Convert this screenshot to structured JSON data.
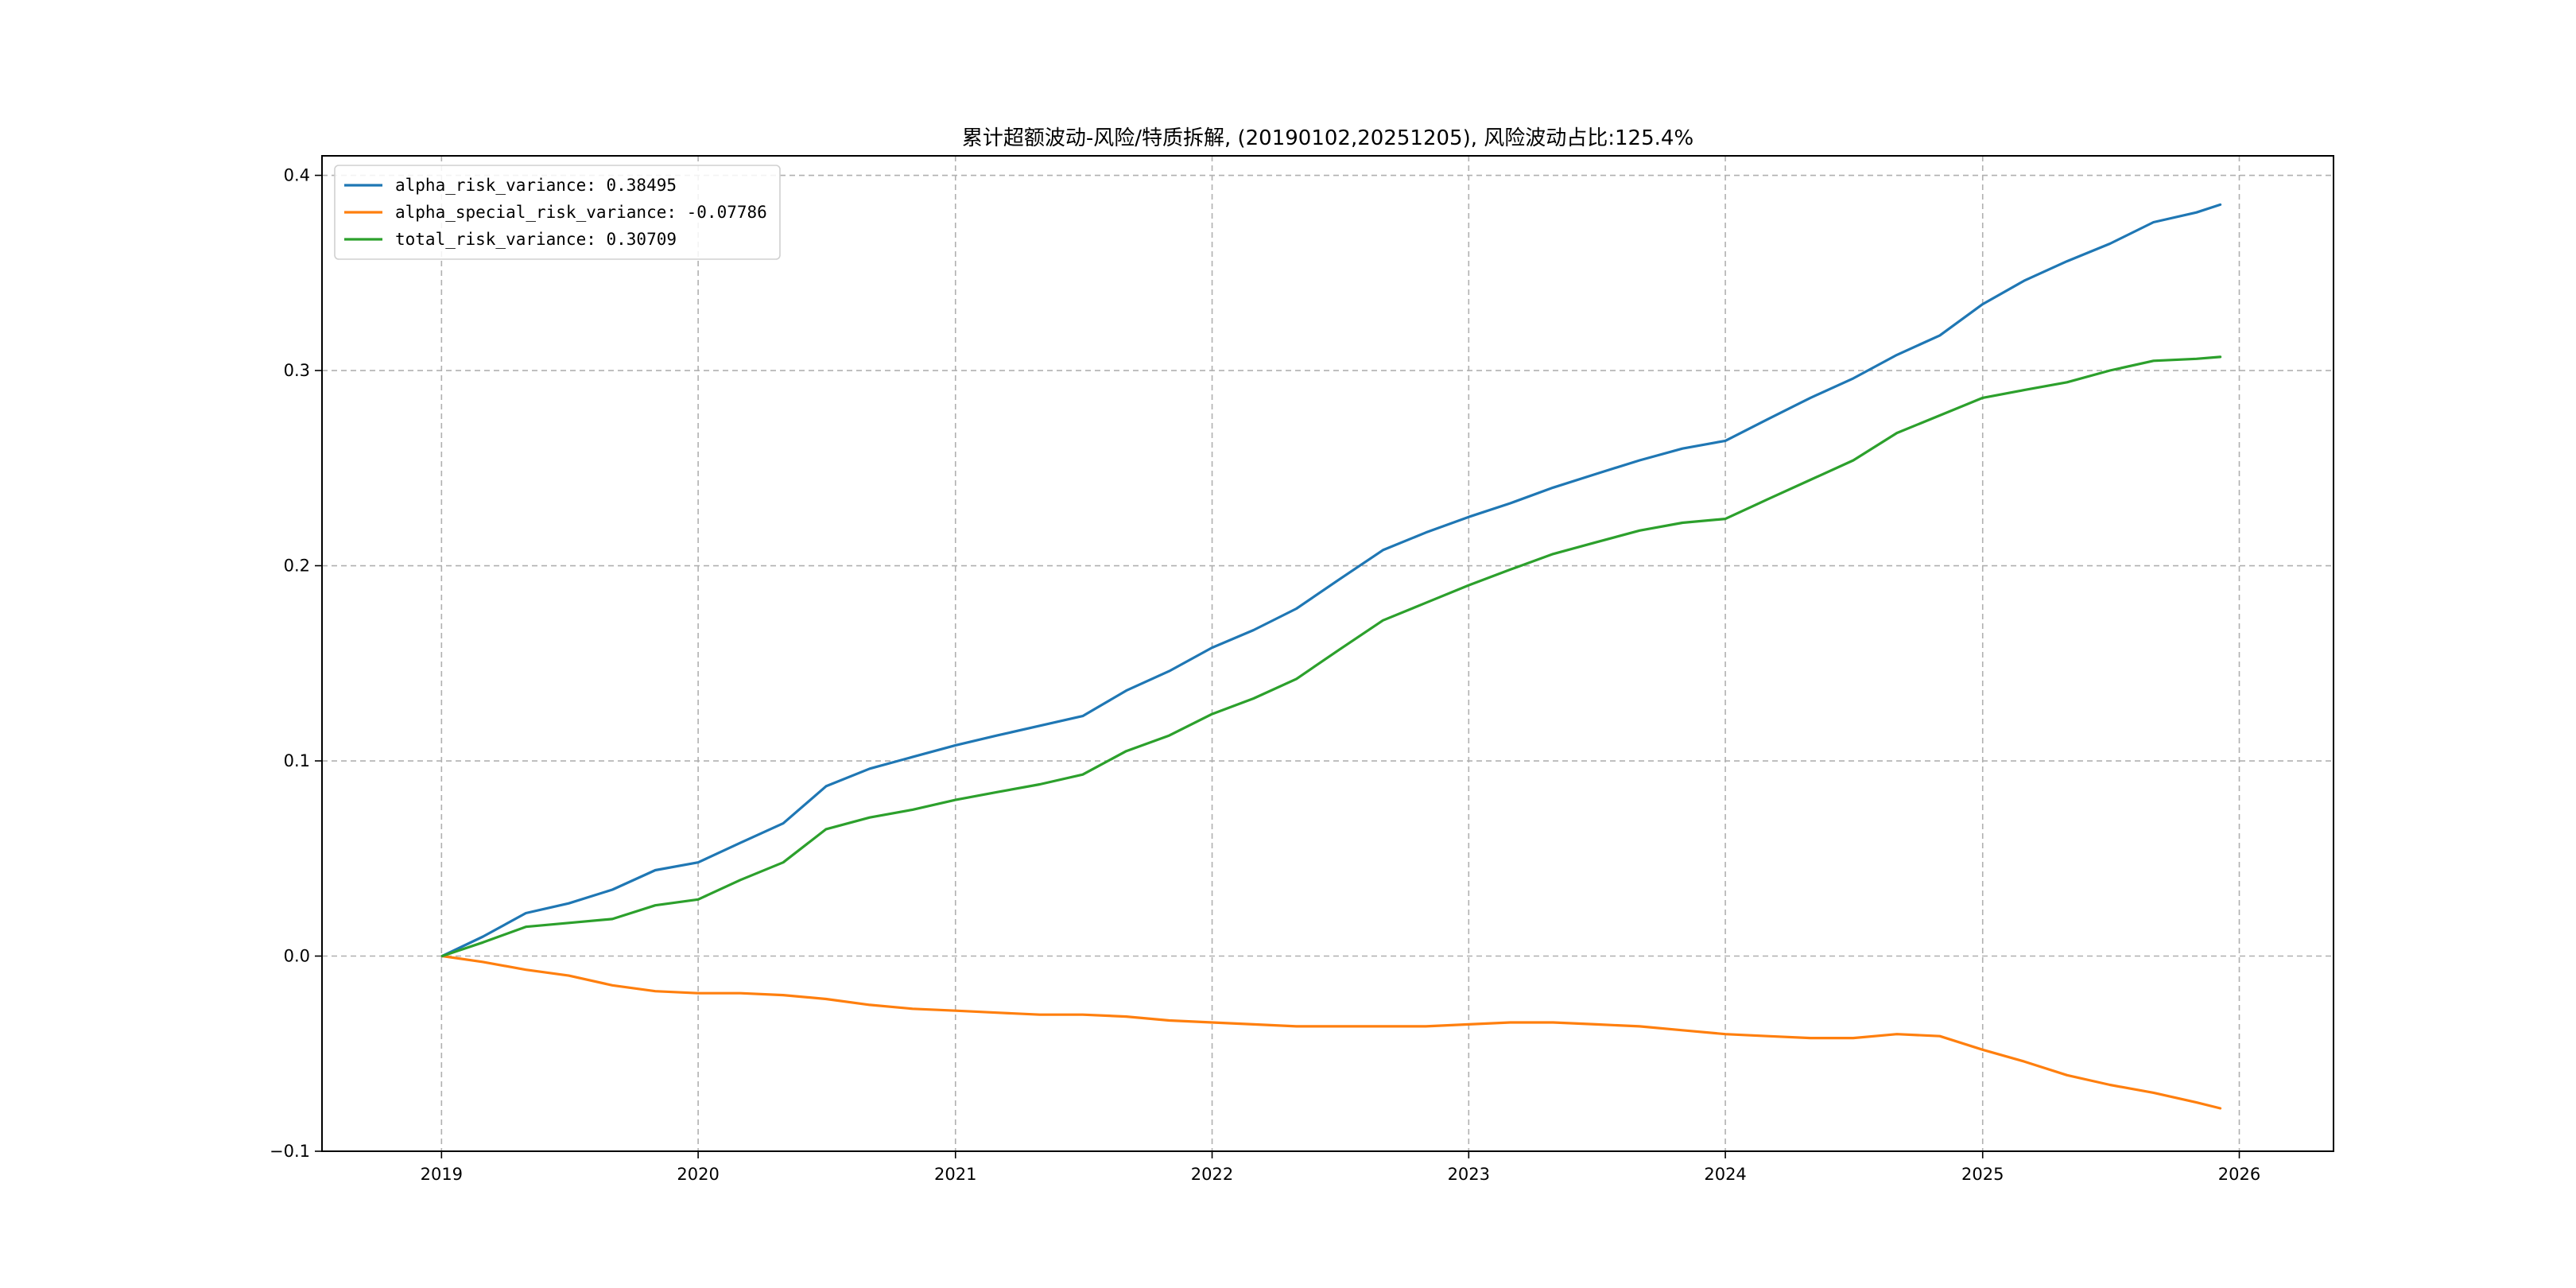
{
  "chart_data": {
    "type": "line",
    "title": "累计超额波动-风险/特质拆解, (20190102,20251205), 风险波动占比:125.4%",
    "xlabel": "",
    "ylabel": "",
    "xlim": [
      "2018-07-15",
      "2026-05-15"
    ],
    "ylim": [
      -0.1,
      0.41
    ],
    "x_ticks": [
      "2019",
      "2020",
      "2021",
      "2022",
      "2023",
      "2024",
      "2025",
      "2026"
    ],
    "y_ticks": [
      "−0.1",
      "0.0",
      "0.1",
      "0.2",
      "0.3",
      "0.4"
    ],
    "grid": true,
    "legend_position": "top-left",
    "series": [
      {
        "name": "alpha_risk_variance: 0.38495",
        "color": "#1f77b4",
        "points": [
          [
            "2019-01-02",
            0.0
          ],
          [
            "2019-03-01",
            0.01
          ],
          [
            "2019-05-01",
            0.022
          ],
          [
            "2019-07-01",
            0.027
          ],
          [
            "2019-09-01",
            0.034
          ],
          [
            "2019-11-01",
            0.044
          ],
          [
            "2020-01-01",
            0.048
          ],
          [
            "2020-03-01",
            0.058
          ],
          [
            "2020-05-01",
            0.068
          ],
          [
            "2020-07-01",
            0.087
          ],
          [
            "2020-09-01",
            0.096
          ],
          [
            "2020-11-01",
            0.102
          ],
          [
            "2021-01-01",
            0.108
          ],
          [
            "2021-03-01",
            0.113
          ],
          [
            "2021-05-01",
            0.118
          ],
          [
            "2021-07-01",
            0.123
          ],
          [
            "2021-09-01",
            0.136
          ],
          [
            "2021-11-01",
            0.146
          ],
          [
            "2022-01-01",
            0.158
          ],
          [
            "2022-03-01",
            0.167
          ],
          [
            "2022-05-01",
            0.178
          ],
          [
            "2022-07-01",
            0.193
          ],
          [
            "2022-09-01",
            0.208
          ],
          [
            "2022-11-01",
            0.217
          ],
          [
            "2023-01-01",
            0.225
          ],
          [
            "2023-03-01",
            0.232
          ],
          [
            "2023-05-01",
            0.24
          ],
          [
            "2023-07-01",
            0.247
          ],
          [
            "2023-09-01",
            0.254
          ],
          [
            "2023-11-01",
            0.26
          ],
          [
            "2024-01-01",
            0.264
          ],
          [
            "2024-03-01",
            0.275
          ],
          [
            "2024-05-01",
            0.286
          ],
          [
            "2024-07-01",
            0.296
          ],
          [
            "2024-09-01",
            0.308
          ],
          [
            "2024-11-01",
            0.318
          ],
          [
            "2025-01-01",
            0.334
          ],
          [
            "2025-03-01",
            0.346
          ],
          [
            "2025-05-01",
            0.356
          ],
          [
            "2025-07-01",
            0.365
          ],
          [
            "2025-09-01",
            0.376
          ],
          [
            "2025-11-01",
            0.381
          ],
          [
            "2025-12-05",
            0.385
          ]
        ]
      },
      {
        "name": "alpha_special_risk_variance: -0.07786",
        "color": "#ff7f0e",
        "points": [
          [
            "2019-01-02",
            0.0
          ],
          [
            "2019-03-01",
            -0.003
          ],
          [
            "2019-05-01",
            -0.007
          ],
          [
            "2019-07-01",
            -0.01
          ],
          [
            "2019-09-01",
            -0.015
          ],
          [
            "2019-11-01",
            -0.018
          ],
          [
            "2020-01-01",
            -0.019
          ],
          [
            "2020-03-01",
            -0.019
          ],
          [
            "2020-05-01",
            -0.02
          ],
          [
            "2020-07-01",
            -0.022
          ],
          [
            "2020-09-01",
            -0.025
          ],
          [
            "2020-11-01",
            -0.027
          ],
          [
            "2021-01-01",
            -0.028
          ],
          [
            "2021-03-01",
            -0.029
          ],
          [
            "2021-05-01",
            -0.03
          ],
          [
            "2021-07-01",
            -0.03
          ],
          [
            "2021-09-01",
            -0.031
          ],
          [
            "2021-11-01",
            -0.033
          ],
          [
            "2022-01-01",
            -0.034
          ],
          [
            "2022-03-01",
            -0.035
          ],
          [
            "2022-05-01",
            -0.036
          ],
          [
            "2022-07-01",
            -0.036
          ],
          [
            "2022-09-01",
            -0.036
          ],
          [
            "2022-11-01",
            -0.036
          ],
          [
            "2023-01-01",
            -0.035
          ],
          [
            "2023-03-01",
            -0.034
          ],
          [
            "2023-05-01",
            -0.034
          ],
          [
            "2023-07-01",
            -0.035
          ],
          [
            "2023-09-01",
            -0.036
          ],
          [
            "2023-11-01",
            -0.038
          ],
          [
            "2024-01-01",
            -0.04
          ],
          [
            "2024-03-01",
            -0.041
          ],
          [
            "2024-05-01",
            -0.042
          ],
          [
            "2024-07-01",
            -0.042
          ],
          [
            "2024-09-01",
            -0.04
          ],
          [
            "2024-11-01",
            -0.041
          ],
          [
            "2025-01-01",
            -0.048
          ],
          [
            "2025-03-01",
            -0.054
          ],
          [
            "2025-05-01",
            -0.061
          ],
          [
            "2025-07-01",
            -0.066
          ],
          [
            "2025-09-01",
            -0.07
          ],
          [
            "2025-11-01",
            -0.075
          ],
          [
            "2025-12-05",
            -0.078
          ]
        ]
      },
      {
        "name": "total_risk_variance: 0.30709",
        "color": "#2ca02c",
        "points": [
          [
            "2019-01-02",
            0.0
          ],
          [
            "2019-03-01",
            0.007
          ],
          [
            "2019-05-01",
            0.015
          ],
          [
            "2019-07-01",
            0.017
          ],
          [
            "2019-09-01",
            0.019
          ],
          [
            "2019-11-01",
            0.026
          ],
          [
            "2020-01-01",
            0.029
          ],
          [
            "2020-03-01",
            0.039
          ],
          [
            "2020-05-01",
            0.048
          ],
          [
            "2020-07-01",
            0.065
          ],
          [
            "2020-09-01",
            0.071
          ],
          [
            "2020-11-01",
            0.075
          ],
          [
            "2021-01-01",
            0.08
          ],
          [
            "2021-03-01",
            0.084
          ],
          [
            "2021-05-01",
            0.088
          ],
          [
            "2021-07-01",
            0.093
          ],
          [
            "2021-09-01",
            0.105
          ],
          [
            "2021-11-01",
            0.113
          ],
          [
            "2022-01-01",
            0.124
          ],
          [
            "2022-03-01",
            0.132
          ],
          [
            "2022-05-01",
            0.142
          ],
          [
            "2022-07-01",
            0.157
          ],
          [
            "2022-09-01",
            0.172
          ],
          [
            "2022-11-01",
            0.181
          ],
          [
            "2023-01-01",
            0.19
          ],
          [
            "2023-03-01",
            0.198
          ],
          [
            "2023-05-01",
            0.206
          ],
          [
            "2023-07-01",
            0.212
          ],
          [
            "2023-09-01",
            0.218
          ],
          [
            "2023-11-01",
            0.222
          ],
          [
            "2024-01-01",
            0.224
          ],
          [
            "2024-03-01",
            0.234
          ],
          [
            "2024-05-01",
            0.244
          ],
          [
            "2024-07-01",
            0.254
          ],
          [
            "2024-09-01",
            0.268
          ],
          [
            "2024-11-01",
            0.277
          ],
          [
            "2025-01-01",
            0.286
          ],
          [
            "2025-03-01",
            0.29
          ],
          [
            "2025-05-01",
            0.294
          ],
          [
            "2025-07-01",
            0.3
          ],
          [
            "2025-09-01",
            0.305
          ],
          [
            "2025-11-01",
            0.306
          ],
          [
            "2025-12-05",
            0.307
          ]
        ]
      }
    ]
  }
}
